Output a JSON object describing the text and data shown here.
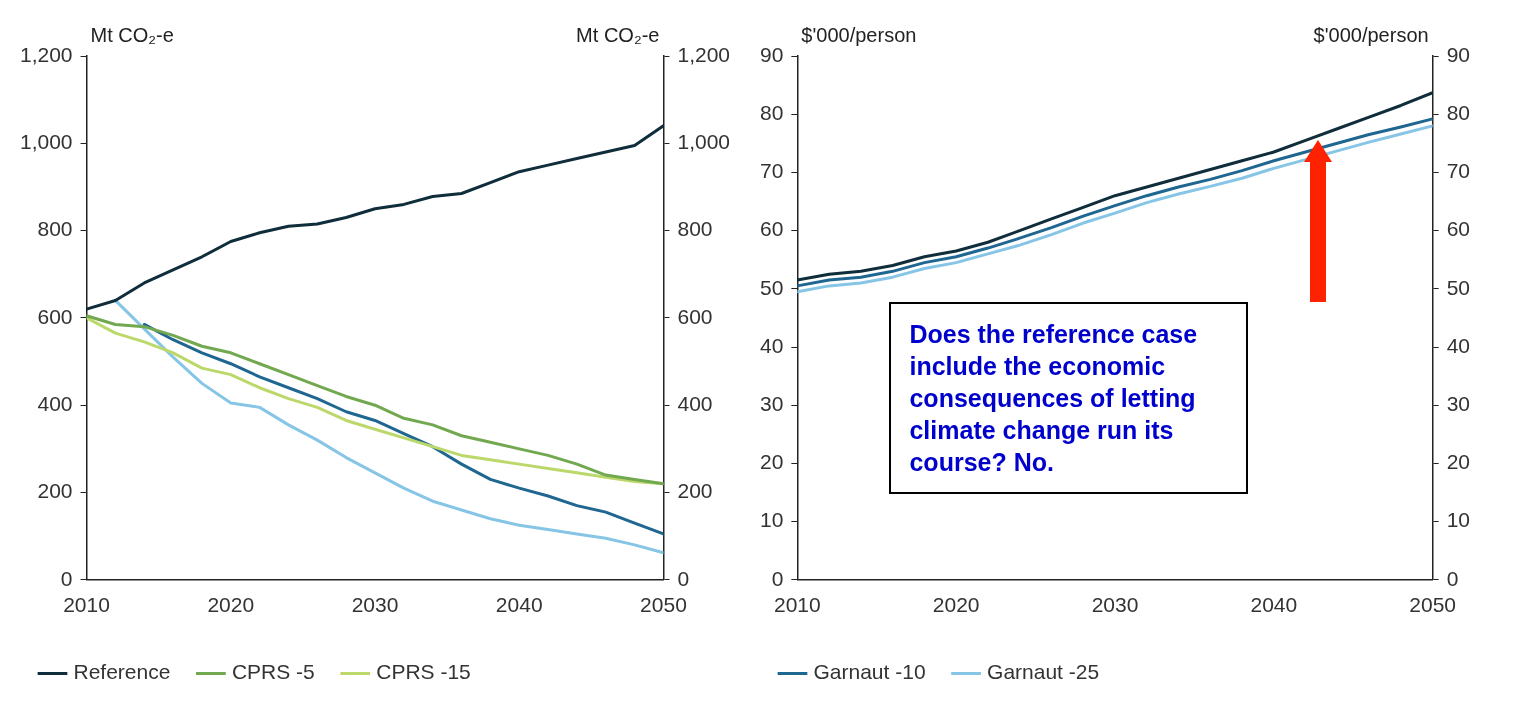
{
  "chart_data": [
    {
      "type": "line",
      "ylabel": "Mt CO₂-e",
      "y2label": "Mt CO₂-e",
      "x": [
        2010,
        2012,
        2014,
        2016,
        2018,
        2020,
        2022,
        2024,
        2026,
        2028,
        2030,
        2032,
        2034,
        2036,
        2038,
        2040,
        2042,
        2044,
        2046,
        2048,
        2050
      ],
      "xlim": [
        2010,
        2050
      ],
      "xticks": [
        2010,
        2020,
        2030,
        2040,
        2050
      ],
      "ylim": [
        0,
        1200
      ],
      "yticks": [
        0,
        {
          "value": 200,
          "label": "200"
        },
        {
          "value": 400,
          "label": "400"
        },
        {
          "value": 600,
          "label": "600"
        },
        {
          "value": 800,
          "label": "800"
        },
        {
          "value": 1000,
          "label": "1,000"
        },
        {
          "value": 1200,
          "label": "1,200"
        }
      ],
      "y2lim": [
        0,
        1200
      ],
      "y2ticks": [
        0,
        {
          "value": 200,
          "label": "200"
        },
        {
          "value": 400,
          "label": "400"
        },
        {
          "value": 600,
          "label": "600"
        },
        {
          "value": 800,
          "label": "800"
        },
        {
          "value": 1000,
          "label": "1,000"
        },
        {
          "value": 1200,
          "label": "1,200"
        }
      ],
      "grid": false,
      "legend": "bottom",
      "marker": "none",
      "line_style": "solid",
      "series": [
        {
          "name": "Reference",
          "color": "#0f2d3a",
          "values": [
            620,
            640,
            680,
            710,
            740,
            775,
            795,
            810,
            815,
            830,
            850,
            860,
            878,
            885,
            910,
            935,
            950,
            965,
            980,
            995,
            1040
          ]
        },
        {
          "name": "CPRS -5",
          "color": "#72a84f",
          "values": [
            605,
            585,
            580,
            560,
            535,
            520,
            495,
            470,
            445,
            420,
            400,
            370,
            355,
            330,
            315,
            300,
            285,
            265,
            240,
            230,
            220
          ]
        },
        {
          "name": "CPRS -15",
          "color": "#bcd86b",
          "values": [
            600,
            565,
            545,
            520,
            485,
            470,
            440,
            415,
            395,
            365,
            345,
            325,
            305,
            285,
            275,
            265,
            255,
            245,
            235,
            225,
            220
          ]
        },
        {
          "color": "#1f6690",
          "values": [
            null,
            null,
            585,
            550,
            520,
            495,
            465,
            440,
            415,
            385,
            365,
            335,
            305,
            265,
            230,
            210,
            192,
            170,
            155,
            130,
            105
          ]
        },
        {
          "color": "#86c5e6",
          "values": [
            null,
            640,
            575,
            510,
            450,
            405,
            395,
            355,
            320,
            280,
            245,
            210,
            180,
            160,
            140,
            125,
            115,
            105,
            95,
            80,
            62
          ]
        }
      ]
    },
    {
      "type": "line",
      "ylabel": "$'000/person",
      "y2label": "$'000/person",
      "x": [
        2010,
        2012,
        2014,
        2016,
        2018,
        2020,
        2022,
        2024,
        2026,
        2028,
        2030,
        2032,
        2034,
        2036,
        2038,
        2040,
        2042,
        2044,
        2046,
        2048,
        2050
      ],
      "xlim": [
        2010,
        2050
      ],
      "xticks": [
        2010,
        2020,
        2030,
        2040,
        2050
      ],
      "ylim": [
        0,
        90
      ],
      "yticks": [
        0,
        10,
        20,
        30,
        40,
        50,
        60,
        70,
        80,
        90
      ],
      "y2lim": [
        0,
        90
      ],
      "y2ticks": [
        0,
        10,
        20,
        30,
        40,
        50,
        60,
        70,
        80,
        90
      ],
      "grid": false,
      "legend": "bottom",
      "marker": "none",
      "line_style": "solid",
      "annotations": [
        "Does the reference case include the economic consequences of letting climate change run its course? No."
      ],
      "series": [
        {
          "color": "#0f2d3a",
          "values": [
            51.5,
            52.5,
            53,
            54,
            55.5,
            56.5,
            58,
            60,
            62,
            64,
            66,
            67.5,
            69,
            70.5,
            72,
            73.5,
            75.5,
            77.5,
            79.5,
            81.5,
            83.7
          ]
        },
        {
          "name": "Garnaut -10",
          "color": "#1f6690",
          "values": [
            50.5,
            51.5,
            52,
            53,
            54.5,
            55.5,
            57,
            58.7,
            60.5,
            62.5,
            64.3,
            66,
            67.5,
            68.8,
            70.3,
            72,
            73.5,
            75,
            76.5,
            77.8,
            79.2
          ]
        },
        {
          "name": "Garnaut -25",
          "color": "#86c5e6",
          "values": [
            49.5,
            50.5,
            51,
            52,
            53.5,
            54.5,
            56,
            57.5,
            59.3,
            61.3,
            63,
            64.8,
            66.3,
            67.6,
            69,
            70.7,
            72.2,
            73.7,
            75.2,
            76.6,
            78
          ]
        }
      ]
    }
  ]
}
